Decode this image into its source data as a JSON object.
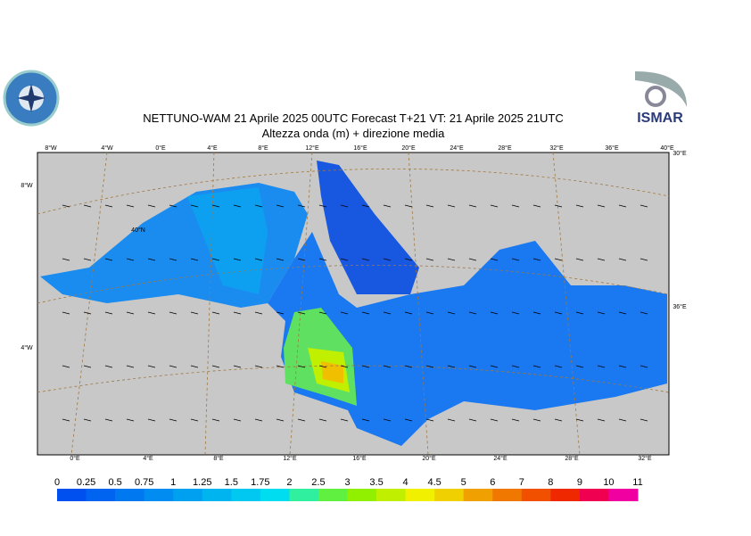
{
  "header": {
    "title": "NETTUNO-WAM  21   Aprile  2025 00UTC Forecast T+21 VT: 21   Aprile  2025 21UTC",
    "subtitle": "Altezza onda (m) + direzione media",
    "logo_right": "ISMAR"
  },
  "graticule": {
    "top": [
      "8°W",
      "4°W",
      "0°E",
      "4°E",
      "8°E",
      "12°E",
      "16°E",
      "20°E",
      "24°E",
      "28°E",
      "32°E",
      "36°E",
      "40°E"
    ],
    "bottom": [
      "0°E",
      "4°E",
      "8°E",
      "12°E",
      "16°E",
      "20°E",
      "24°E",
      "28°E",
      "32°E"
    ],
    "left": [
      "8°W",
      "4°W"
    ],
    "right": [
      "30°E",
      "36°E"
    ],
    "inner": [
      "40°N"
    ]
  },
  "legend": {
    "labels": [
      "0",
      "0.25",
      "0.5",
      "0.75",
      "1",
      "1.25",
      "1.5",
      "1.75",
      "2",
      "2.5",
      "3",
      "3.5",
      "4",
      "4.5",
      "5",
      "6",
      "7",
      "8",
      "9",
      "10",
      "11"
    ],
    "colors": [
      "#0050f0",
      "#0064f0",
      "#0078f0",
      "#008cf0",
      "#00a0f0",
      "#00b4f0",
      "#00c8f0",
      "#00dcf0",
      "#30f0a0",
      "#60f040",
      "#90f000",
      "#c0f000",
      "#f0f000",
      "#f0d000",
      "#f0a000",
      "#f07800",
      "#f05000",
      "#f02800",
      "#f00050",
      "#f000a0"
    ]
  }
}
